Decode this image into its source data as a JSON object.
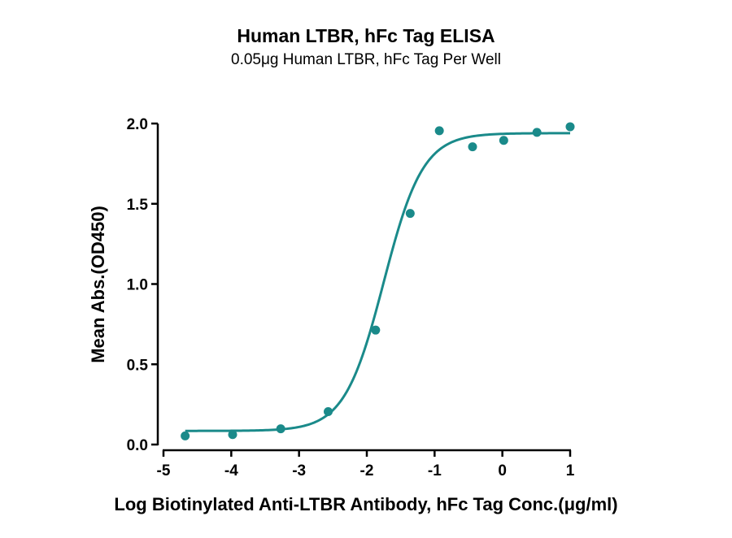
{
  "chart_data": {
    "type": "scatter",
    "title": "Human LTBR, hFc Tag ELISA",
    "subtitle": "0.05μg Human LTBR, hFc Tag Per Well",
    "xlabel": "Log Biotinylated Anti-LTBR Antibody, hFc Tag Conc.(μg/ml)",
    "ylabel": "Mean Abs.(OD450)",
    "xlim": [
      -5,
      1
    ],
    "ylim": [
      0,
      2.0
    ],
    "xticks": [
      "-5",
      "-4",
      "-3",
      "-2",
      "-1",
      "0",
      "1"
    ],
    "yticks": [
      "0.0",
      "0.5",
      "1.0",
      "1.5",
      "2.0"
    ],
    "color": "#1a8a8a",
    "grid": false,
    "legend": "none",
    "points": {
      "x": [
        -4.68,
        -3.98,
        -3.27,
        -2.57,
        -1.87,
        -1.36,
        -0.93,
        -0.44,
        0.02,
        0.51,
        1.0
      ],
      "y": [
        0.054,
        0.062,
        0.098,
        0.205,
        0.713,
        1.44,
        1.955,
        1.855,
        1.895,
        1.945,
        1.98
      ]
    },
    "fit_curve": {
      "model": "4-parameter logistic",
      "bottom": 0.085,
      "top": 1.94,
      "log_ec50": -1.75,
      "hill_slope": 1.5
    }
  }
}
